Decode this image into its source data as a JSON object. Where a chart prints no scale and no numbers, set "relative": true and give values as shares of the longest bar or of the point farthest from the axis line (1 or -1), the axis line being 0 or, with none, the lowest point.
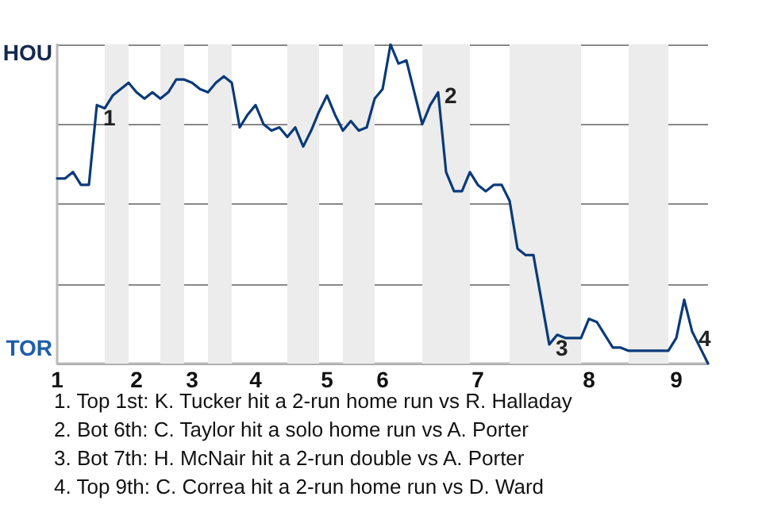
{
  "chart_data": {
    "type": "line",
    "categories": [
      "1",
      null,
      null,
      null,
      null,
      null,
      null,
      null,
      null,
      null,
      "2",
      null,
      null,
      null,
      null,
      null,
      null,
      "3",
      null,
      null,
      null,
      null,
      null,
      null,
      null,
      "4",
      null,
      null,
      null,
      null,
      null,
      null,
      null,
      null,
      "5",
      null,
      null,
      null,
      null,
      null,
      null,
      "6",
      null,
      null,
      null,
      null,
      null,
      null,
      null,
      null,
      null,
      null,
      null,
      "7",
      null,
      null,
      null,
      null,
      null,
      null,
      null,
      null,
      null,
      null,
      null,
      null,
      null,
      "8",
      null,
      null,
      null,
      null,
      null,
      null,
      null,
      null,
      null,
      null,
      "9",
      null,
      null,
      null,
      null
    ],
    "series": [
      {
        "color": "#0b3a7a",
        "values": [
          0.58,
          0.58,
          0.6,
          0.56,
          0.56,
          0.81,
          0.8,
          0.84,
          0.86,
          0.88,
          0.85,
          0.83,
          0.85,
          0.83,
          0.85,
          0.89,
          0.89,
          0.88,
          0.86,
          0.85,
          0.88,
          0.9,
          0.88,
          0.74,
          0.78,
          0.81,
          0.75,
          0.73,
          0.74,
          0.71,
          0.74,
          0.68,
          0.73,
          0.79,
          0.84,
          0.78,
          0.73,
          0.76,
          0.73,
          0.74,
          0.83,
          0.86,
          1,
          0.94,
          0.95,
          0.85,
          0.75,
          0.81,
          0.85,
          0.6,
          0.54,
          0.54,
          0.6,
          0.56,
          0.54,
          0.56,
          0.56,
          0.51,
          0.36,
          0.34,
          0.34,
          0.2,
          0.06,
          0.09,
          0.08,
          0.08,
          0.08,
          0.14,
          0.13,
          0.09,
          0.05,
          0.05,
          0.04,
          0.04,
          0.04,
          0.04,
          0.04,
          0.04,
          0.08,
          0.2,
          0.1,
          0.05,
          0
        ]
      }
    ],
    "relative": true,
    "annotations": [
      "HOU",
      "TOR",
      "1",
      "2",
      "3",
      "4",
      "1. Top 1st: K. Tucker hit a 2-run home run vs R. Halladay",
      "2. Bot 6th: C. Taylor hit a solo home run vs A. Porter",
      "3. Bot 7th: H. McNair hit a 2-run double vs A. Porter",
      "4. Top 9th: C. Correa hit a 2-run home run vs D. Ward"
    ],
    "grid": "y",
    "marker": "none",
    "line_style": "solid"
  }
}
